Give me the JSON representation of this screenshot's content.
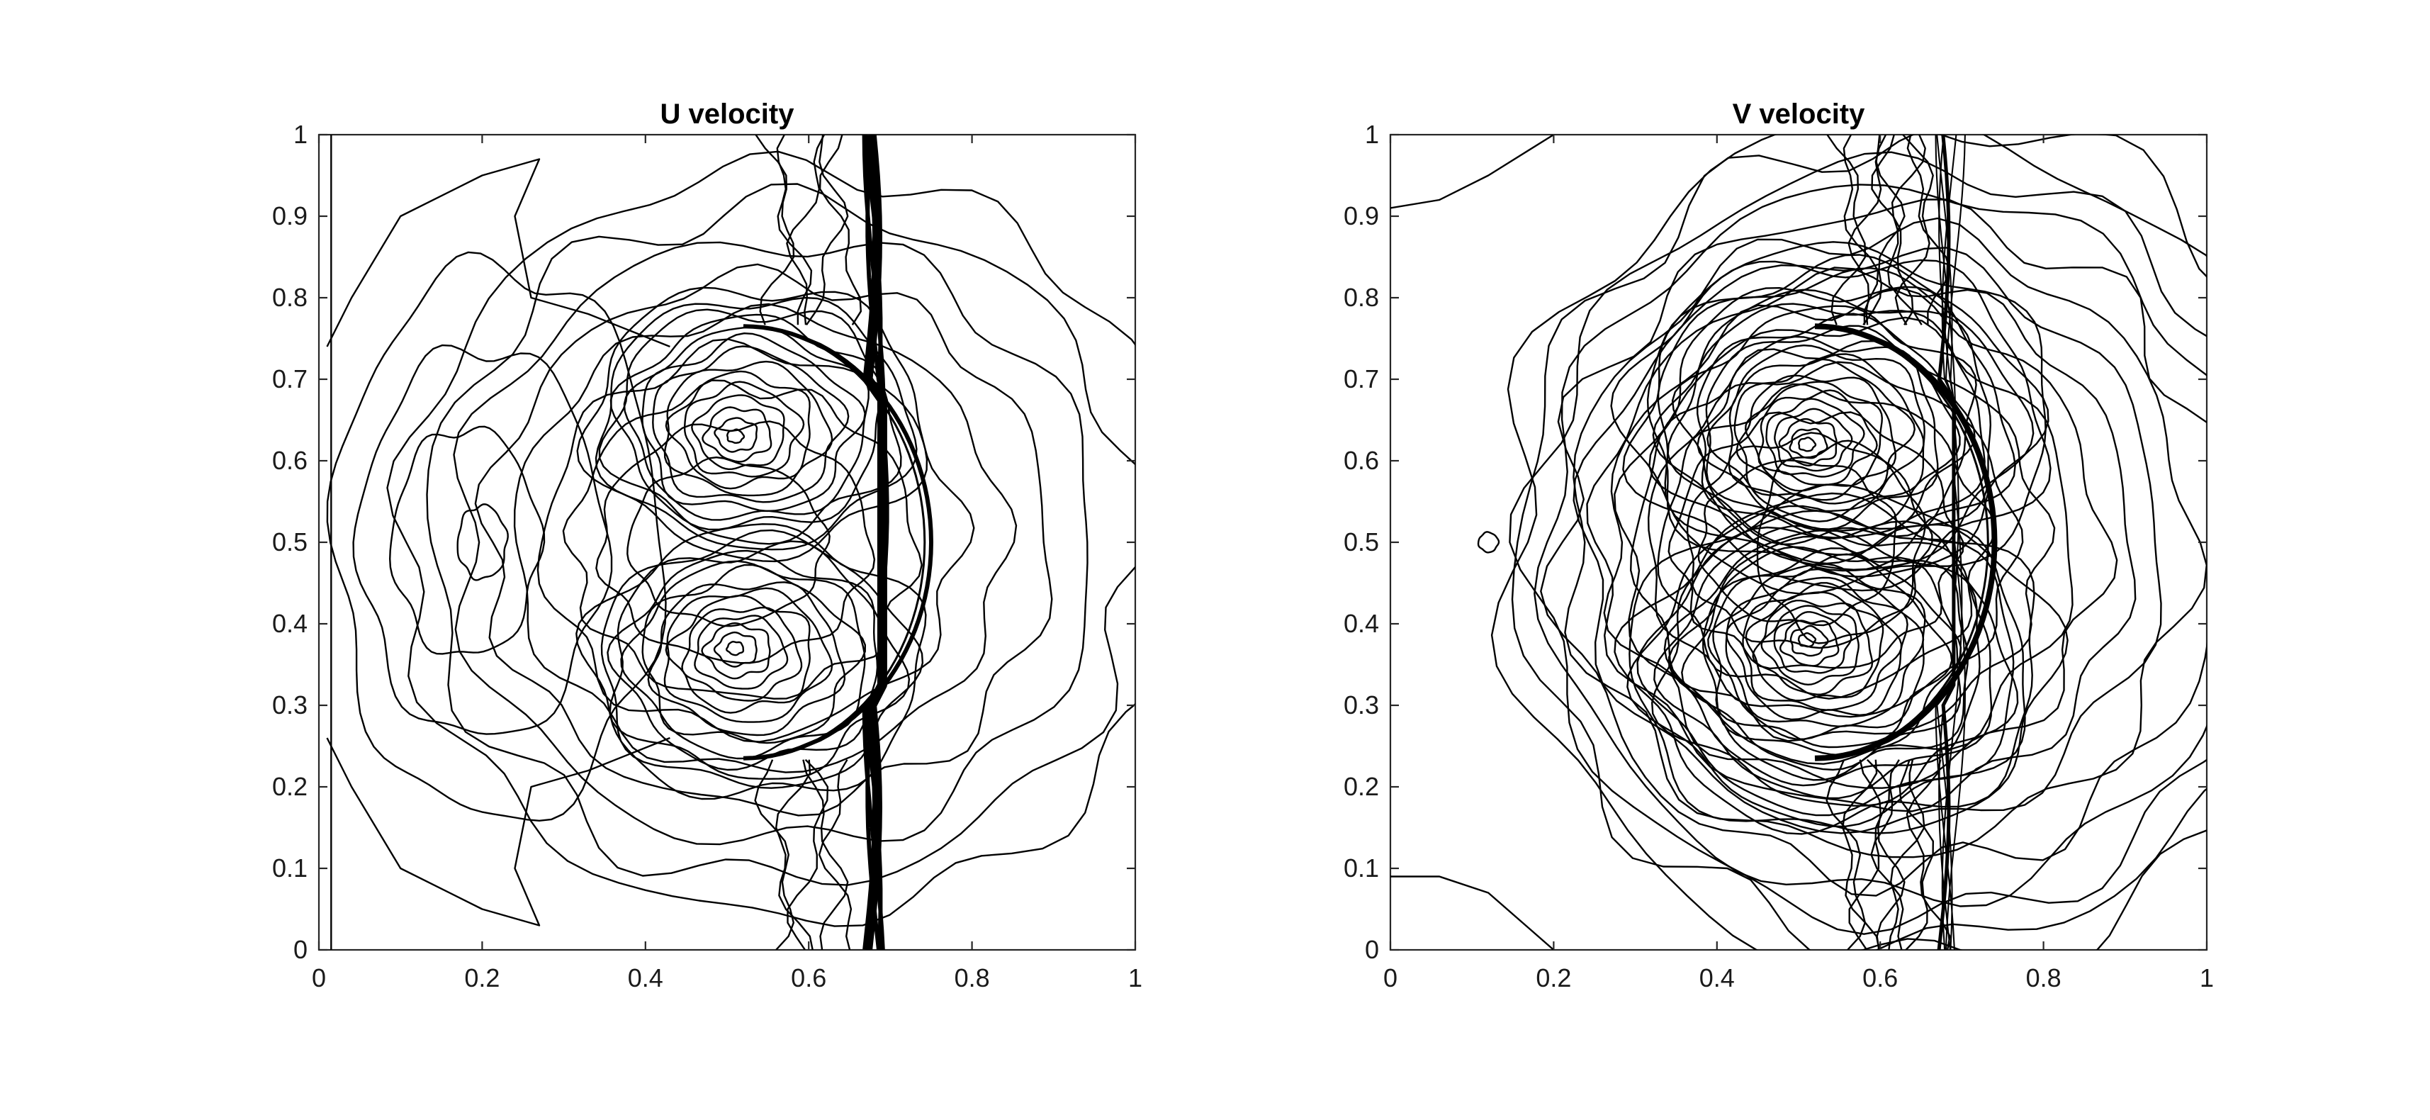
{
  "figure": {
    "background": "#ffffff",
    "line_color": "#000000"
  },
  "chart_data": [
    {
      "type": "contour",
      "title": "U velocity",
      "xlabel": "",
      "ylabel": "",
      "xlim": [
        0,
        1
      ],
      "ylim": [
        0,
        1
      ],
      "x_ticks": [
        "0",
        "0.2",
        "0.4",
        "0.6",
        "0.8",
        "1"
      ],
      "y_ticks": [
        "0",
        "0.1",
        "0.2",
        "0.3",
        "0.4",
        "0.5",
        "0.6",
        "0.7",
        "0.8",
        "0.9",
        "1"
      ],
      "grid": false,
      "legend": "none",
      "features": {
        "planar_shock_x": 0.68,
        "bow_shock_apex": [
          0.75,
          0.5
        ],
        "vortex_centers": [
          [
            0.51,
            0.63
          ],
          [
            0.51,
            0.37
          ]
        ]
      }
    },
    {
      "type": "contour",
      "title": "V velocity",
      "xlabel": "",
      "ylabel": "",
      "xlim": [
        0,
        1
      ],
      "ylim": [
        0,
        1
      ],
      "x_ticks": [
        "0",
        "0.2",
        "0.4",
        "0.6",
        "0.8",
        "1"
      ],
      "y_ticks": [
        "0",
        "0.1",
        "0.2",
        "0.3",
        "0.4",
        "0.5",
        "0.6",
        "0.7",
        "0.8",
        "0.9",
        "1"
      ],
      "grid": false,
      "legend": "none",
      "features": {
        "planar_shock_x": 0.68,
        "bow_shock_apex": [
          0.74,
          0.5
        ],
        "vortex_centers": [
          [
            0.51,
            0.62
          ],
          [
            0.51,
            0.38
          ]
        ]
      }
    }
  ]
}
